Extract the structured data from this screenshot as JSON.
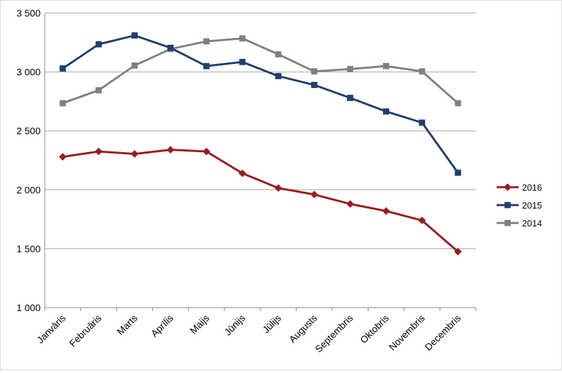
{
  "chart_data": {
    "type": "line",
    "title": "",
    "xlabel": "",
    "ylabel": "",
    "categories": [
      "Janvāris",
      "Februāris",
      "Marts",
      "Aprīlis",
      "Maijs",
      "Jūnijs",
      "Jūlijs",
      "Augusts",
      "Septembris",
      "Oktobris",
      "Novembris",
      "Decembris"
    ],
    "ylim": [
      1000,
      3500
    ],
    "yticks": [
      1000,
      1500,
      2000,
      2500,
      3000,
      3500
    ],
    "ytick_labels": [
      "1 000",
      "1 500",
      "2 000",
      "2 500",
      "3 000",
      "3 500"
    ],
    "grid": true,
    "legend": "right",
    "series": [
      {
        "name": "2016",
        "color": "#9b1c1c",
        "marker": "diamond",
        "values": [
          2280,
          2325,
          2305,
          2340,
          2325,
          2140,
          2015,
          1960,
          1880,
          1820,
          1740,
          1475
        ]
      },
      {
        "name": "2015",
        "color": "#1f3f6e",
        "marker": "square",
        "values": [
          3030,
          3235,
          3310,
          3205,
          3050,
          3085,
          2965,
          2890,
          2780,
          2665,
          2570,
          2145
        ]
      },
      {
        "name": "2014",
        "color": "#808080",
        "marker": "square",
        "values": [
          2735,
          2845,
          3055,
          3195,
          3260,
          3285,
          3150,
          3005,
          3025,
          3050,
          3005,
          2735
        ]
      }
    ]
  }
}
